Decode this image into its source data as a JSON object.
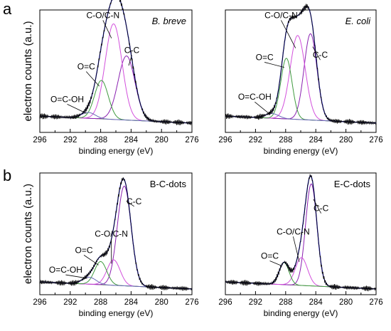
{
  "panel_letters": [
    "a",
    "b"
  ],
  "colors": {
    "raw": "#000000",
    "fit": "#2b2bd9",
    "c_c": "#8a1fb0",
    "c_o_c_n": "#d24fdc",
    "o_c": "#3f9a3f",
    "o_c_oh": "#6a6ab8",
    "background": "#5a5a5a"
  },
  "chart_data": [
    {
      "type": "line",
      "panel": "a",
      "title": "B. breve",
      "title_italic": true,
      "xlabel": "binding energy (eV)",
      "ylabel": "electron counts (a.u.)",
      "xlim": [
        296,
        276
      ],
      "x_ticks": [
        296,
        292,
        288,
        284,
        280,
        276
      ],
      "ylim": [
        0,
        1.05
      ],
      "baseline": 0.08,
      "series": [
        {
          "name": "C-C",
          "center": 284.6,
          "width": 1.1,
          "height": 0.55,
          "color_key": "c_c"
        },
        {
          "name": "C-O/C-N",
          "center": 286.3,
          "width": 1.1,
          "height": 0.82,
          "color_key": "c_o_c_n"
        },
        {
          "name": "O=C",
          "center": 287.9,
          "width": 0.9,
          "height": 0.33,
          "color_key": "o_c"
        },
        {
          "name": "O=C-OH",
          "center": 289.6,
          "width": 0.9,
          "height": 0.05,
          "color_key": "o_c_oh"
        }
      ],
      "annotations": [
        {
          "text": "C-O/C-N",
          "x": 287.7,
          "y": 0.98
        },
        {
          "text": "C-C",
          "x": 283.9,
          "y": 0.68
        },
        {
          "text": "O=C",
          "x": 289.9,
          "y": 0.54
        },
        {
          "text": "O=C-OH",
          "x": 292.4,
          "y": 0.26
        }
      ]
    },
    {
      "type": "line",
      "panel": "a",
      "title": "E. coli",
      "title_italic": true,
      "xlabel": "binding energy (eV)",
      "ylabel": "",
      "xlim": [
        296,
        276
      ],
      "x_ticks": [
        296,
        292,
        288,
        284,
        280,
        276
      ],
      "ylim": [
        0,
        1.05
      ],
      "baseline": 0.08,
      "series": [
        {
          "name": "C-C",
          "center": 284.7,
          "width": 0.85,
          "height": 0.74,
          "color_key": "c_c"
        },
        {
          "name": "C-O/C-N",
          "center": 286.4,
          "width": 1.0,
          "height": 0.72,
          "color_key": "c_o_c_n"
        },
        {
          "name": "O=C",
          "center": 287.9,
          "width": 0.75,
          "height": 0.52,
          "color_key": "o_c"
        },
        {
          "name": "O=C-OH",
          "center": 289.8,
          "width": 0.9,
          "height": 0.04,
          "color_key": "o_c_oh"
        }
      ],
      "annotations": [
        {
          "text": "C-O/C-N",
          "x": 288.6,
          "y": 0.98
        },
        {
          "text": "C-C",
          "x": 283.4,
          "y": 0.64
        },
        {
          "text": "O=C",
          "x": 290.8,
          "y": 0.62
        },
        {
          "text": "O=C-OH",
          "x": 292.1,
          "y": 0.28
        }
      ]
    },
    {
      "type": "line",
      "panel": "b",
      "title": "B-C-dots",
      "title_italic": false,
      "xlabel": "binding energy (eV)",
      "ylabel": "electron counts (a.u.)",
      "xlim": [
        296,
        276
      ],
      "x_ticks": [
        296,
        292,
        288,
        284,
        280,
        276
      ],
      "ylim": [
        0,
        1.05
      ],
      "baseline": 0.05,
      "series": [
        {
          "name": "C-C",
          "center": 284.9,
          "width": 0.9,
          "height": 0.86,
          "color_key": "c_c"
        },
        {
          "name": "C-O/C-N",
          "center": 286.3,
          "width": 0.85,
          "height": 0.22,
          "color_key": "c_o_c_n"
        },
        {
          "name": "O=C",
          "center": 288.0,
          "width": 0.8,
          "height": 0.2,
          "color_key": "o_c"
        },
        {
          "name": "O=C-OH",
          "center": 289.5,
          "width": 0.9,
          "height": 0.06,
          "color_key": "o_c_oh"
        }
      ],
      "annotations": [
        {
          "text": "C-C",
          "x": 283.6,
          "y": 0.78
        },
        {
          "text": "C-O/C-N",
          "x": 286.6,
          "y": 0.5
        },
        {
          "text": "O=C",
          "x": 290.2,
          "y": 0.36
        },
        {
          "text": "O=C-OH",
          "x": 292.6,
          "y": 0.19
        }
      ]
    },
    {
      "type": "line",
      "panel": "b",
      "title": "E-C-dots",
      "title_italic": false,
      "xlabel": "binding energy (eV)",
      "ylabel": "",
      "xlim": [
        296,
        276
      ],
      "x_ticks": [
        296,
        292,
        288,
        284,
        280,
        276
      ],
      "ylim": [
        0,
        1.05
      ],
      "baseline": 0.05,
      "series": [
        {
          "name": "C-C",
          "center": 284.6,
          "width": 0.75,
          "height": 0.88,
          "color_key": "c_c"
        },
        {
          "name": "C-O/C-N",
          "center": 285.9,
          "width": 0.8,
          "height": 0.24,
          "color_key": "c_o_c_n"
        },
        {
          "name": "O=C",
          "center": 288.2,
          "width": 0.65,
          "height": 0.19,
          "color_key": "o_c"
        }
      ],
      "annotations": [
        {
          "text": "C-C",
          "x": 283.3,
          "y": 0.72
        },
        {
          "text": "C-O/C-N",
          "x": 287.0,
          "y": 0.52
        },
        {
          "text": "O=C",
          "x": 290.1,
          "y": 0.31
        }
      ]
    }
  ]
}
